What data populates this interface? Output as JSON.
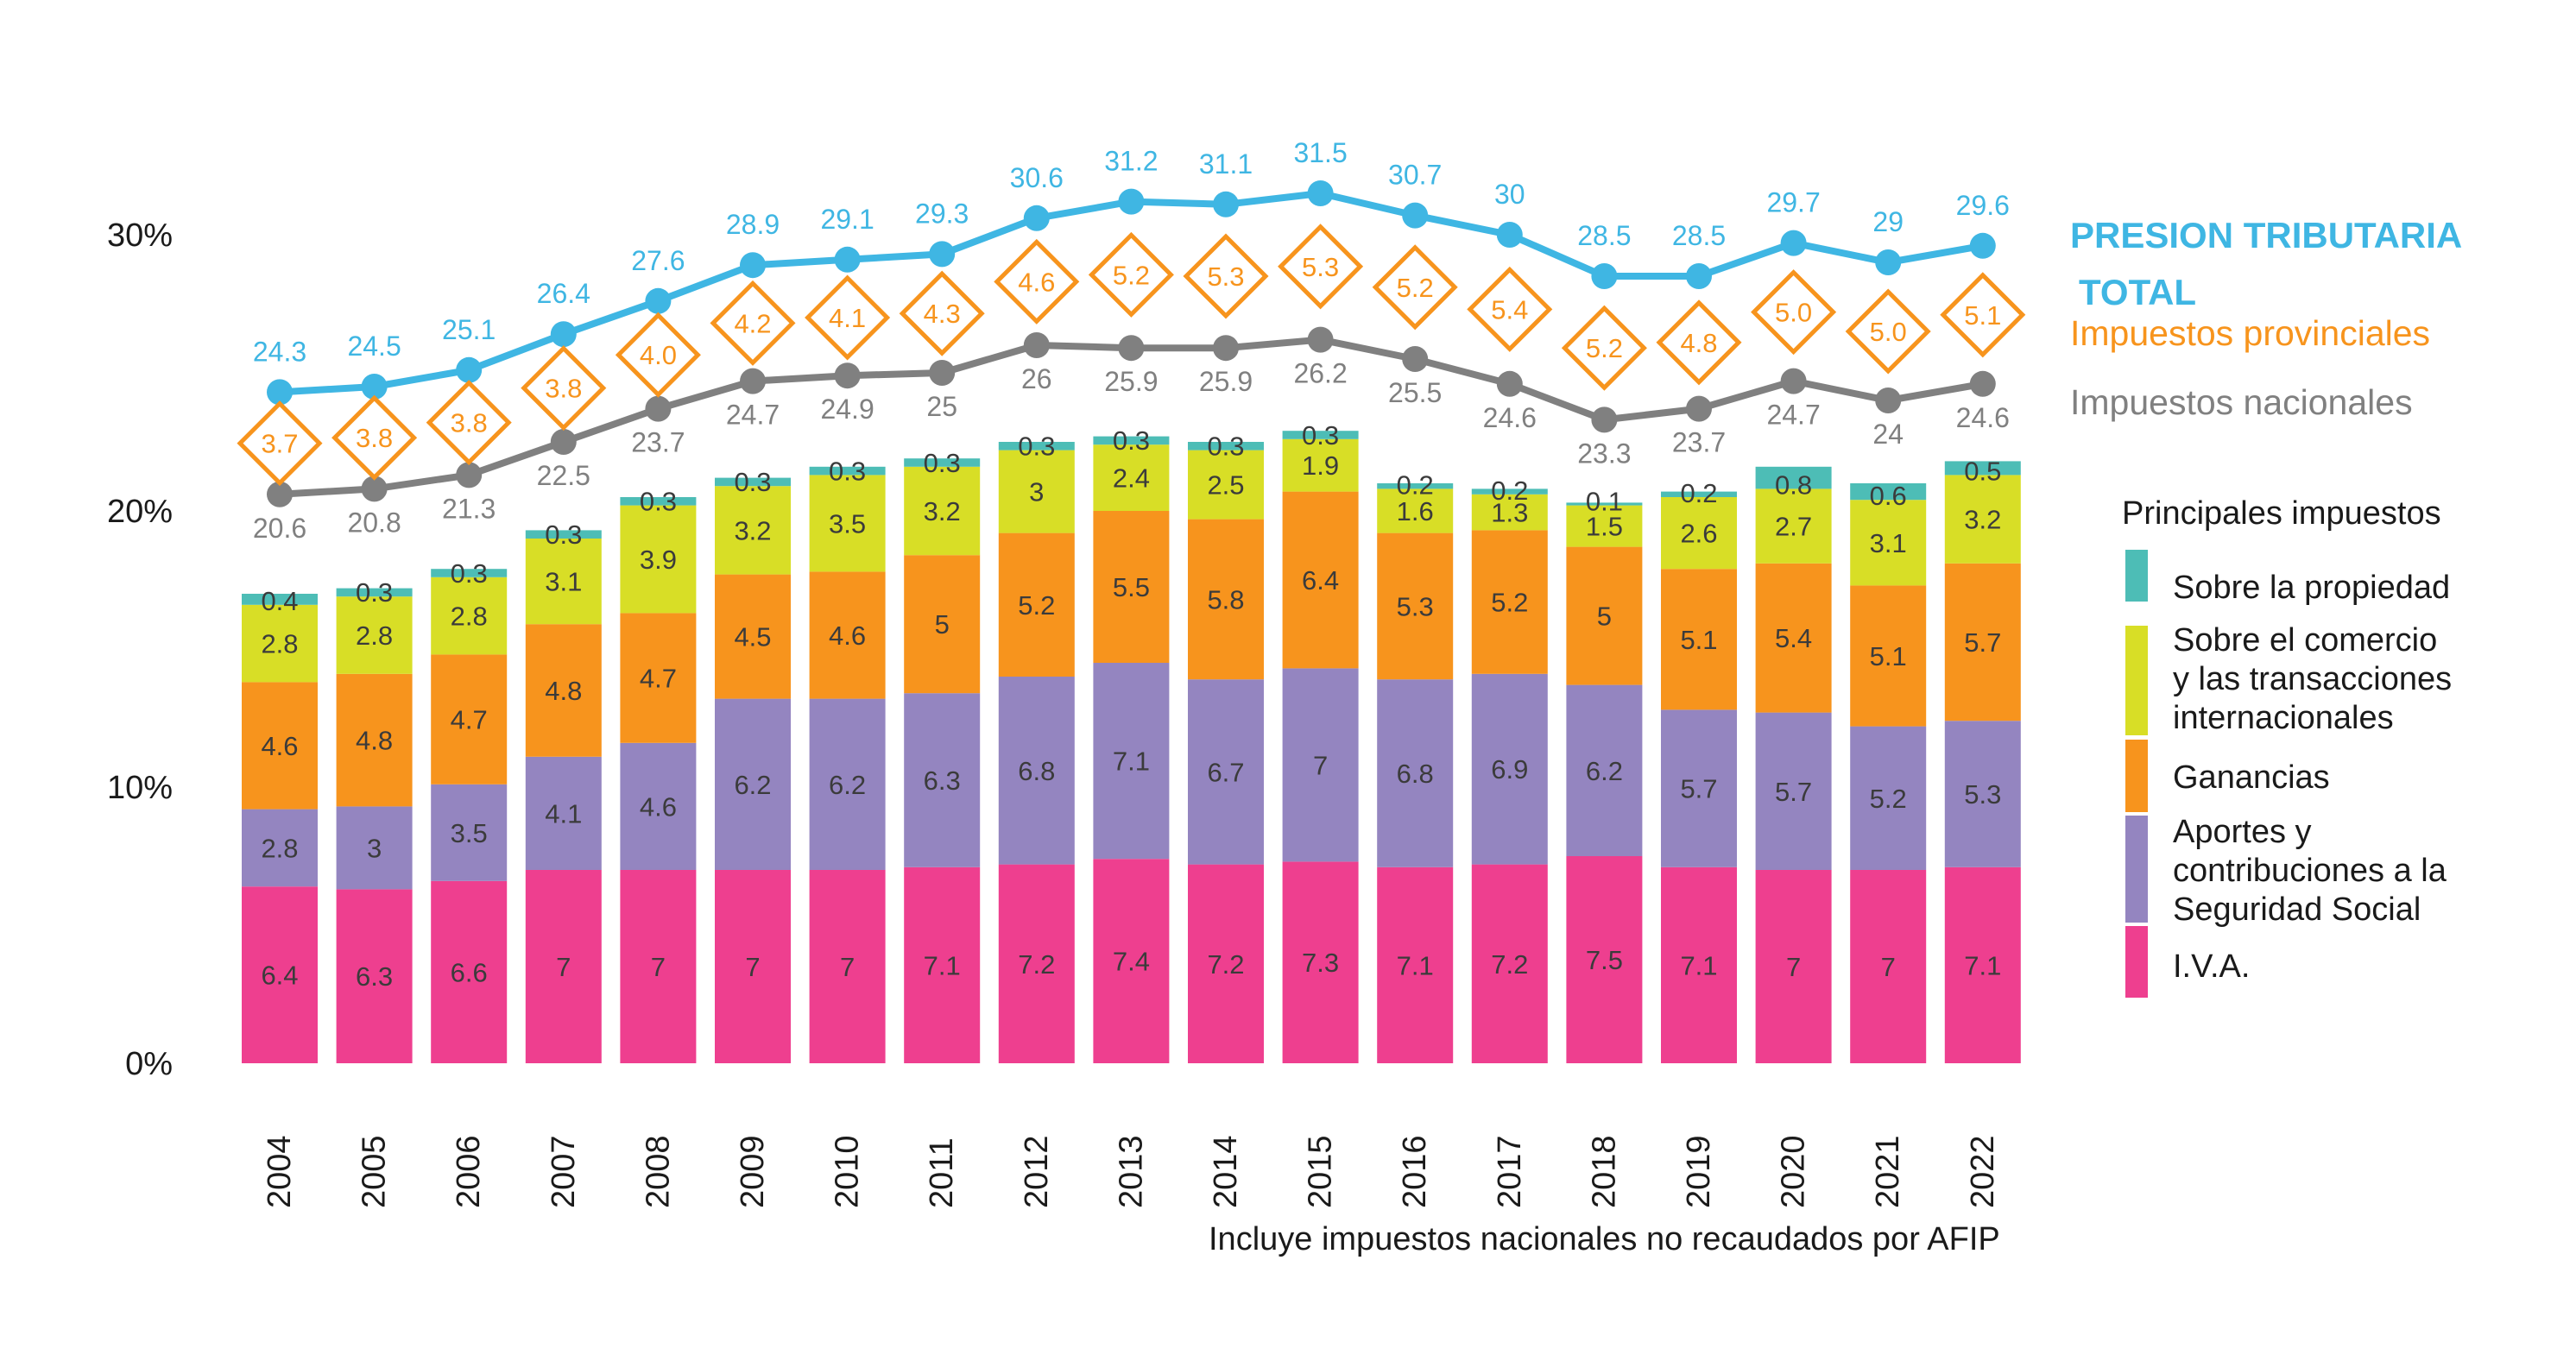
{
  "chart_data": {
    "type": "bar",
    "stacked": true,
    "categories": [
      "2004",
      "2005",
      "2006",
      "2007",
      "2008",
      "2009",
      "2010",
      "2011",
      "2012",
      "2013",
      "2014",
      "2015",
      "2016",
      "2017",
      "2018",
      "2019",
      "2020",
      "2021",
      "2022"
    ],
    "y_axis": {
      "ticks": [
        0,
        10,
        20,
        30
      ],
      "tick_labels": [
        "0%",
        "10%",
        "20%",
        "30%"
      ],
      "range": [
        0,
        30
      ]
    },
    "series": [
      {
        "name": "I.V.A.",
        "color": "#ee3f8f",
        "values": [
          6.4,
          6.3,
          6.6,
          7,
          7,
          7,
          7,
          7.1,
          7.2,
          7.4,
          7.2,
          7.3,
          7.1,
          7.2,
          7.5,
          7.1,
          7,
          7,
          7.1
        ]
      },
      {
        "name": "Aportes y contribuciones a la Seguridad Social",
        "color": "#9485c0",
        "values": [
          2.8,
          3,
          3.5,
          4.1,
          4.6,
          6.2,
          6.2,
          6.3,
          6.8,
          7.1,
          6.7,
          7,
          6.8,
          6.9,
          6.2,
          5.7,
          5.7,
          5.2,
          5.3
        ]
      },
      {
        "name": "Ganancias",
        "color": "#f7941d",
        "values": [
          4.6,
          4.8,
          4.7,
          4.8,
          4.7,
          4.5,
          4.6,
          5,
          5.2,
          5.5,
          5.8,
          6.4,
          5.3,
          5.2,
          5,
          5.1,
          5.4,
          5.1,
          5.7
        ]
      },
      {
        "name": "Sobre el comercio y las transacciones internacionales",
        "color": "#d8de26",
        "values": [
          2.8,
          2.8,
          2.8,
          3.1,
          3.9,
          3.2,
          3.5,
          3.2,
          3,
          2.4,
          2.5,
          1.9,
          1.6,
          1.3,
          1.5,
          2.6,
          2.7,
          3.1,
          3.2
        ]
      },
      {
        "name": "Sobre la propiedad",
        "color": "#4dbdb6",
        "values": [
          0.4,
          0.3,
          0.3,
          0.3,
          0.3,
          0.3,
          0.3,
          0.3,
          0.3,
          0.3,
          0.3,
          0.3,
          0.2,
          0.2,
          0.1,
          0.2,
          0.8,
          0.6,
          0.5
        ]
      }
    ],
    "lines": [
      {
        "name": "PRESION TRIBUTARIA TOTAL",
        "color": "#3fb6e3",
        "values": [
          24.3,
          24.5,
          25.1,
          26.4,
          27.6,
          28.9,
          29.1,
          29.3,
          30.6,
          31.2,
          31.1,
          31.5,
          30.7,
          30,
          28.5,
          28.5,
          29.7,
          29,
          29.6
        ]
      },
      {
        "name": "Impuestos nacionales",
        "color": "#808080",
        "values": [
          20.6,
          20.8,
          21.3,
          22.5,
          23.7,
          24.7,
          24.9,
          25,
          26,
          25.9,
          25.9,
          26.2,
          25.5,
          24.6,
          23.3,
          23.7,
          24.7,
          24,
          24.6
        ]
      }
    ],
    "provincial": {
      "name": "Impuestos provinciales",
      "color": "#f7941d",
      "labels": [
        "3.7",
        "3.8",
        "3.8",
        "3.8",
        "4.0",
        "4.2",
        "4.1",
        "4.3",
        "4.6",
        "5.2",
        "5.3",
        "5.3",
        "5.2",
        "5.4",
        "5.2",
        "4.8",
        "5.0",
        "5.0",
        "5.1"
      ]
    },
    "legend_title": "Principales impuestos",
    "legend_items": [
      {
        "label_lines": [
          "Sobre la propiedad"
        ],
        "color": "#4dbdb6"
      },
      {
        "label_lines": [
          "Sobre el comercio",
          " y las transacciones",
          " internacionales"
        ],
        "color": "#d8de26"
      },
      {
        "label_lines": [
          "Ganancias"
        ],
        "color": "#f7941d"
      },
      {
        "label_lines": [
          "Aportes y",
          " contribuciones a la",
          " Seguridad Social"
        ],
        "color": "#9485c0"
      },
      {
        "label_lines": [
          "I.V.A."
        ],
        "color": "#ee3f8f"
      }
    ],
    "line_legend": {
      "total_line1": "PRESION TRIBUTARIA",
      "total_line2": "TOTAL",
      "provincial": "Impuestos provinciales",
      "national": "Impuestos nacionales"
    },
    "footnote": "Incluye impuestos nacionales no recaudados por AFIP"
  }
}
